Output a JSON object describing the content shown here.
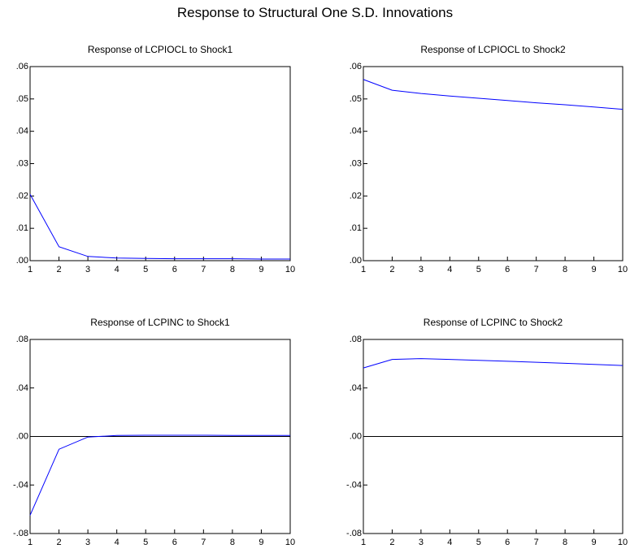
{
  "title": "Response to Structural One S.D. Innovations",
  "colors": {
    "series": "#0000ff",
    "zero_line": "#000000",
    "frame": "#000000"
  },
  "chart_data": [
    {
      "type": "line",
      "title": "Response of LCPIOCL to Shock1",
      "x": [
        1,
        2,
        3,
        4,
        5,
        6,
        7,
        8,
        9,
        10
      ],
      "series": [
        {
          "values": [
            0.0205,
            0.0043,
            0.0013,
            0.0008,
            0.0007,
            0.0006,
            0.0006,
            0.0006,
            0.0005,
            0.0005
          ]
        }
      ],
      "ylim": [
        0,
        0.06
      ],
      "yticks": [
        ".00",
        ".01",
        ".02",
        ".03",
        ".04",
        ".05",
        ".06"
      ],
      "xticks": [
        "1",
        "2",
        "3",
        "4",
        "5",
        "6",
        "7",
        "8",
        "9",
        "10"
      ],
      "zero_line": false
    },
    {
      "type": "line",
      "title": "Response of LCPIOCL to Shock2",
      "x": [
        1,
        2,
        3,
        4,
        5,
        6,
        7,
        8,
        9,
        10
      ],
      "series": [
        {
          "values": [
            0.056,
            0.0527,
            0.0517,
            0.0509,
            0.0502,
            0.0495,
            0.0488,
            0.0482,
            0.0475,
            0.0468
          ]
        }
      ],
      "ylim": [
        0,
        0.06
      ],
      "yticks": [
        ".00",
        ".01",
        ".02",
        ".03",
        ".04",
        ".05",
        ".06"
      ],
      "xticks": [
        "1",
        "2",
        "3",
        "4",
        "5",
        "6",
        "7",
        "8",
        "9",
        "10"
      ],
      "zero_line": false
    },
    {
      "type": "line",
      "title": "Response of LCPINC to Shock1",
      "x": [
        1,
        2,
        3,
        4,
        5,
        6,
        7,
        8,
        9,
        10
      ],
      "series": [
        {
          "values": [
            -0.065,
            -0.0105,
            -0.0005,
            0.0008,
            0.001,
            0.001,
            0.001,
            0.0009,
            0.0009,
            0.0008
          ]
        }
      ],
      "ylim": [
        -0.08,
        0.08
      ],
      "yticks": [
        "-.08",
        "-.04",
        ".00",
        ".04",
        ".08"
      ],
      "xticks": [
        "1",
        "2",
        "3",
        "4",
        "5",
        "6",
        "7",
        "8",
        "9",
        "10"
      ],
      "zero_line": true
    },
    {
      "type": "line",
      "title": "Response of LCPINC to Shock2",
      "x": [
        1,
        2,
        3,
        4,
        5,
        6,
        7,
        8,
        9,
        10
      ],
      "series": [
        {
          "values": [
            0.0565,
            0.0635,
            0.0642,
            0.0635,
            0.0628,
            0.062,
            0.0612,
            0.0603,
            0.0594,
            0.0585
          ]
        }
      ],
      "ylim": [
        -0.08,
        0.08
      ],
      "yticks": [
        "-.08",
        "-.04",
        ".00",
        ".04",
        ".08"
      ],
      "xticks": [
        "1",
        "2",
        "3",
        "4",
        "5",
        "6",
        "7",
        "8",
        "9",
        "10"
      ],
      "zero_line": true
    }
  ]
}
